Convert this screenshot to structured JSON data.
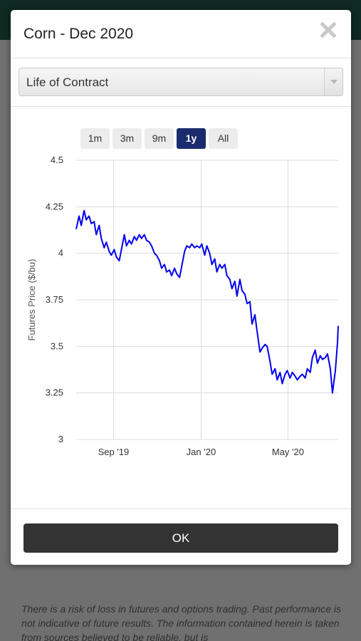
{
  "modal": {
    "title": "Corn - Dec 2020",
    "close_icon": "close-x-icon",
    "range_select": {
      "selected": "Life of Contract"
    },
    "range_buttons": [
      {
        "label": "1m",
        "active": false
      },
      {
        "label": "3m",
        "active": false
      },
      {
        "label": "9m",
        "active": false
      },
      {
        "label": "1y",
        "active": true
      },
      {
        "label": "All",
        "active": false
      }
    ],
    "ok_label": "OK"
  },
  "background": {
    "disclaimer": "There is a risk of loss in futures and options trading. Past performance is not indicative of future results. The information contained herein is taken from sources believed to be reliable, but is"
  },
  "colors": {
    "line": "#0000ee",
    "active_button": "#1b2c6e",
    "ok_button": "#333333",
    "topbar": "#0f2a22"
  },
  "chart_data": {
    "type": "line",
    "title": "",
    "xlabel": "",
    "ylabel": "Futures Price ($/bu)",
    "ylim": [
      3,
      4.5
    ],
    "yticks": [
      "4.5",
      "4.25",
      "4",
      "3.75",
      "3.5",
      "3.25",
      "3"
    ],
    "xlim": [
      "2019-07-11",
      "2020-07-10"
    ],
    "xticks": [
      {
        "date": "2019-09-01",
        "label": "Sep '19"
      },
      {
        "date": "2020-01-01",
        "label": "Jan '20"
      },
      {
        "date": "2020-05-01",
        "label": "May '20"
      }
    ],
    "grid": true,
    "legend": "none",
    "series": [
      {
        "x": [
          "2019-07-11",
          "2019-07-15",
          "2019-07-18",
          "2019-07-22",
          "2019-07-25",
          "2019-07-29",
          "2019-08-01",
          "2019-08-05",
          "2019-08-08",
          "2019-08-12",
          "2019-08-15",
          "2019-08-19",
          "2019-08-22",
          "2019-08-26",
          "2019-08-29",
          "2019-09-02",
          "2019-09-05",
          "2019-09-09",
          "2019-09-12",
          "2019-09-16",
          "2019-09-19",
          "2019-09-23",
          "2019-09-26",
          "2019-09-30",
          "2019-10-03",
          "2019-10-07",
          "2019-10-10",
          "2019-10-14",
          "2019-10-17",
          "2019-10-21",
          "2019-10-24",
          "2019-10-28",
          "2019-10-31",
          "2019-11-04",
          "2019-11-07",
          "2019-11-11",
          "2019-11-14",
          "2019-11-18",
          "2019-11-21",
          "2019-11-25",
          "2019-11-28",
          "2019-12-02",
          "2019-12-05",
          "2019-12-09",
          "2019-12-12",
          "2019-12-16",
          "2019-12-19",
          "2019-12-23",
          "2019-12-26",
          "2019-12-30",
          "2020-01-02",
          "2020-01-06",
          "2020-01-09",
          "2020-01-13",
          "2020-01-16",
          "2020-01-20",
          "2020-01-23",
          "2020-01-27",
          "2020-01-30",
          "2020-02-03",
          "2020-02-06",
          "2020-02-10",
          "2020-02-13",
          "2020-02-17",
          "2020-02-20",
          "2020-02-24",
          "2020-02-27",
          "2020-03-02",
          "2020-03-05",
          "2020-03-09",
          "2020-03-12",
          "2020-03-16",
          "2020-03-19",
          "2020-03-23",
          "2020-03-26",
          "2020-03-30",
          "2020-04-02",
          "2020-04-06",
          "2020-04-09",
          "2020-04-13",
          "2020-04-16",
          "2020-04-20",
          "2020-04-23",
          "2020-04-27",
          "2020-04-30",
          "2020-05-04",
          "2020-05-07",
          "2020-05-11",
          "2020-05-14",
          "2020-05-18",
          "2020-05-21",
          "2020-05-25",
          "2020-05-28",
          "2020-06-01",
          "2020-06-04",
          "2020-06-08",
          "2020-06-11",
          "2020-06-15",
          "2020-06-18",
          "2020-06-22",
          "2020-06-25",
          "2020-06-29",
          "2020-07-02",
          "2020-07-06",
          "2020-07-09",
          "2020-07-10"
        ],
        "y": [
          4.13,
          4.2,
          4.15,
          4.23,
          4.18,
          4.2,
          4.16,
          4.17,
          4.1,
          4.15,
          4.08,
          4.03,
          4.06,
          4.01,
          3.99,
          4.02,
          3.98,
          3.96,
          4.02,
          4.1,
          4.04,
          4.07,
          4.05,
          4.09,
          4.07,
          4.1,
          4.08,
          4.1,
          4.07,
          4.06,
          4.04,
          4.0,
          3.99,
          3.96,
          3.92,
          3.94,
          3.9,
          3.91,
          3.88,
          3.92,
          3.89,
          3.87,
          3.93,
          4.01,
          4.04,
          4.03,
          4.05,
          4.03,
          4.04,
          4.03,
          4.05,
          3.99,
          4.04,
          4.0,
          3.94,
          3.97,
          3.9,
          3.94,
          3.92,
          3.94,
          3.88,
          3.86,
          3.81,
          3.85,
          3.77,
          3.86,
          3.8,
          3.78,
          3.73,
          3.74,
          3.62,
          3.67,
          3.58,
          3.47,
          3.49,
          3.51,
          3.5,
          3.42,
          3.35,
          3.38,
          3.32,
          3.36,
          3.3,
          3.35,
          3.37,
          3.33,
          3.36,
          3.34,
          3.32,
          3.34,
          3.35,
          3.33,
          3.38,
          3.36,
          3.44,
          3.48,
          3.41,
          3.45,
          3.43,
          3.44,
          3.46,
          3.38,
          3.25,
          3.37,
          3.52,
          3.61
        ]
      }
    ]
  }
}
